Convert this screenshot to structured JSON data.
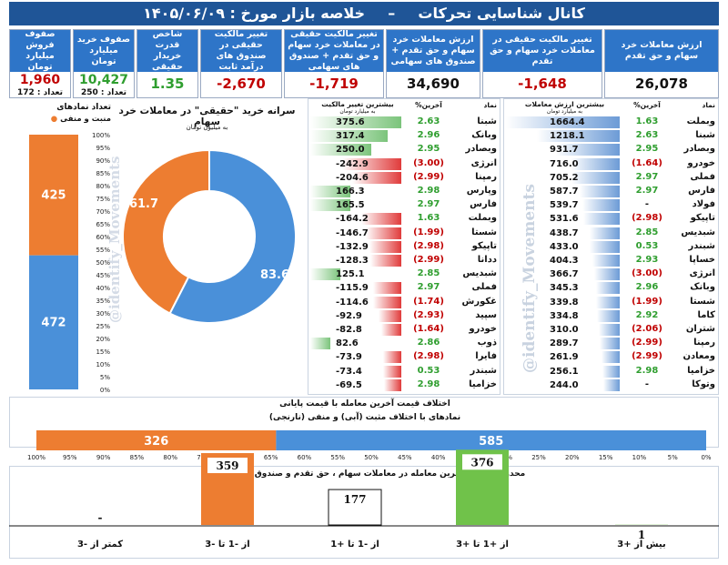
{
  "header": {
    "channel": "کانال شناسایی تحرکات",
    "dash": "–",
    "title": "خلاصه بازار مورخ : ۱۴۰۵/۰۶/۰۹"
  },
  "cards": [
    {
      "label": "صفوف فروش میلیارد تومان",
      "value": "1,960",
      "count": "تعداد : 172",
      "color": "#c00000"
    },
    {
      "label": "صفوف خرید میلیارد تومان",
      "value": "10,427",
      "count": "تعداد : 250",
      "color": "#2f9e2f"
    },
    {
      "label": "شاخص قدرت خریدار حقیقی",
      "value": "1.35",
      "count": "",
      "color": "#2f9e2f"
    },
    {
      "label": "تغییر مالکیت حقیقی در صندوق های درآمد ثابت",
      "value": "-2,670",
      "count": "",
      "color": "#c00000"
    },
    {
      "label": "تغییر مالکیت حقیقی در معاملات خرد سهام و حق تقدم + صندوق های سهامی",
      "value": "-1,719",
      "count": "",
      "color": "#c00000"
    },
    {
      "label": "ارزش معاملات خرد سهام و حق تقدم + صندوق های سهامی",
      "value": "34,690",
      "count": "",
      "color": "#111111"
    },
    {
      "label": "تغییر مالکیت حقیقی در معاملات خرد سهام و حق تقدم",
      "value": "-1,648",
      "count": "",
      "color": "#c00000"
    },
    {
      "label": "ارزش معاملات خرد سهام و حق تقدم",
      "value": "26,078",
      "count": "",
      "color": "#111111"
    }
  ],
  "stack_panel": {
    "title": "تعداد نمادهای",
    "legend": "منبت و منفی",
    "positive_label": "472",
    "negative_label": "425",
    "positive": 472,
    "negative": 425,
    "positive_color": "#4a90d9",
    "negative_color": "#ed7d31",
    "ticks": [
      "100%",
      "95%",
      "90%",
      "85%",
      "80%",
      "75%",
      "70%",
      "65%",
      "60%",
      "55%",
      "50%",
      "45%",
      "40%",
      "35%",
      "30%",
      "25%",
      "20%",
      "15%",
      "10%",
      "5%",
      "0%"
    ]
  },
  "donut": {
    "title": "سرانه خرید \"حقیقی\" در معاملات خرد سهام",
    "subtitle": "به میلیون تومان",
    "buy_label": "83.6",
    "sell_label": "61.7",
    "buy": 83.6,
    "sell": 61.7,
    "buy_color": "#4a90d9",
    "sell_color": "#ed7d31"
  },
  "watermark": "@identify_Movements",
  "owner_table": {
    "header_main": "بیشترین تغییر مالکیت",
    "header_sub": "به میلیارد تومان",
    "col_pct": "%آخرین",
    "col_sym": "نماد",
    "rows": [
      {
        "sym": "شبنا",
        "pct": "2.63",
        "val": 375.6,
        "val_label": "375.6"
      },
      {
        "sym": "وبانک",
        "pct": "2.96",
        "val": 317.4,
        "val_label": "317.4"
      },
      {
        "sym": "وبصادر",
        "pct": "2.95",
        "val": 250.0,
        "val_label": "250.0"
      },
      {
        "sym": "انرژی",
        "pct": "(3.00)",
        "val": -242.9,
        "val_label": "-242.9"
      },
      {
        "sym": "رمپنا",
        "pct": "(2.99)",
        "val": -204.6,
        "val_label": "-204.6"
      },
      {
        "sym": "وپارس",
        "pct": "2.98",
        "val": 166.3,
        "val_label": "166.3"
      },
      {
        "sym": "فارس",
        "pct": "2.97",
        "val": 165.5,
        "val_label": "165.5"
      },
      {
        "sym": "وبملت",
        "pct": "1.63",
        "val": -164.2,
        "val_label": "-164.2"
      },
      {
        "sym": "شستا",
        "pct": "(1.99)",
        "val": -146.7,
        "val_label": "-146.7"
      },
      {
        "sym": "تاپیکو",
        "pct": "(2.98)",
        "val": -132.9,
        "val_label": "-132.9"
      },
      {
        "sym": "ددانا",
        "pct": "(2.99)",
        "val": -128.3,
        "val_label": "-128.3"
      },
      {
        "sym": "شبدیس",
        "pct": "2.85",
        "val": 125.1,
        "val_label": "125.1"
      },
      {
        "sym": "فملی",
        "pct": "2.97",
        "val": -115.9,
        "val_label": "-115.9"
      },
      {
        "sym": "غکورش",
        "pct": "(1.74)",
        "val": -114.6,
        "val_label": "-114.6"
      },
      {
        "sym": "سپید",
        "pct": "(2.93)",
        "val": -92.9,
        "val_label": "-92.9"
      },
      {
        "sym": "خودرو",
        "pct": "(1.64)",
        "val": -82.8,
        "val_label": "-82.8"
      },
      {
        "sym": "ذوب",
        "pct": "2.86",
        "val": 82.6,
        "val_label": "82.6"
      },
      {
        "sym": "فایرا",
        "pct": "(2.98)",
        "val": -73.9,
        "val_label": "-73.9"
      },
      {
        "sym": "شبندر",
        "pct": "0.53",
        "val": -73.4,
        "val_label": "-73.4"
      },
      {
        "sym": "خزامیا",
        "pct": "2.98",
        "val": -69.5,
        "val_label": "-69.5"
      }
    ]
  },
  "value_table": {
    "header_main": "بیشترین ارزش معاملات",
    "header_sub": "به میلیارد تومان",
    "col_pct": "%آخرین",
    "col_sym": "نماد",
    "rows": [
      {
        "sym": "وبملت",
        "pct": "1.63",
        "val": 1664.4,
        "val_label": "1664.4"
      },
      {
        "sym": "شبنا",
        "pct": "2.63",
        "val": 1218.1,
        "val_label": "1218.1"
      },
      {
        "sym": "وبصادر",
        "pct": "2.95",
        "val": 931.7,
        "val_label": "931.7"
      },
      {
        "sym": "خودرو",
        "pct": "(1.64)",
        "val": 716.0,
        "val_label": "716.0"
      },
      {
        "sym": "فملی",
        "pct": "2.97",
        "val": 705.2,
        "val_label": "705.2"
      },
      {
        "sym": "فارس",
        "pct": "2.97",
        "val": 587.7,
        "val_label": "587.7"
      },
      {
        "sym": "فولاد",
        "pct": "-",
        "val": 539.7,
        "val_label": "539.7"
      },
      {
        "sym": "تاپیکو",
        "pct": "(2.98)",
        "val": 531.6,
        "val_label": "531.6"
      },
      {
        "sym": "شبدیس",
        "pct": "2.85",
        "val": 438.7,
        "val_label": "438.7"
      },
      {
        "sym": "شبندر",
        "pct": "0.53",
        "val": 433.0,
        "val_label": "433.0"
      },
      {
        "sym": "خساپا",
        "pct": "2.93",
        "val": 404.3,
        "val_label": "404.3"
      },
      {
        "sym": "انرژی",
        "pct": "(3.00)",
        "val": 366.7,
        "val_label": "366.7"
      },
      {
        "sym": "وبانک",
        "pct": "2.96",
        "val": 345.3,
        "val_label": "345.3"
      },
      {
        "sym": "شستا",
        "pct": "(1.99)",
        "val": 339.8,
        "val_label": "339.8"
      },
      {
        "sym": "کاما",
        "pct": "2.92",
        "val": 334.8,
        "val_label": "334.8"
      },
      {
        "sym": "شتران",
        "pct": "(2.06)",
        "val": 310.0,
        "val_label": "310.0"
      },
      {
        "sym": "رمپنا",
        "pct": "(2.99)",
        "val": 289.7,
        "val_label": "289.7"
      },
      {
        "sym": "ومعادن",
        "pct": "(2.99)",
        "val": 261.9,
        "val_label": "261.9"
      },
      {
        "sym": "خزامیا",
        "pct": "2.98",
        "val": 256.1,
        "val_label": "256.1"
      },
      {
        "sym": "وتوکا",
        "pct": "-",
        "val": 244.0,
        "val_label": "244.0"
      }
    ]
  },
  "hbar": {
    "title": "اختلاف قیمت آخرین معامله با قیمت پایانی",
    "subtitle": "نمادهای با اختلاف مثبت (آبی) و منفی (نارنجی)",
    "negative": 326,
    "positive": 585,
    "negative_label": "326",
    "positive_label": "585",
    "ticks": [
      "100%",
      "95%",
      "90%",
      "85%",
      "80%",
      "75%",
      "70%",
      "65%",
      "60%",
      "55%",
      "50%",
      "45%",
      "40%",
      "35%",
      "30%",
      "25%",
      "20%",
      "15%",
      "10%",
      "5%",
      "0%"
    ]
  },
  "chart_data": {
    "type": "bar",
    "title": "محدوده قیمتی آخرین معامله در  معاملات سهام ، حق تقدم و صندوق های سهامی",
    "categories": [
      "کمتر از -3",
      "از -1 تا -3",
      "از -1 تا +1",
      "از +1 تا +3",
      "بیش از +3"
    ],
    "values": [
      0,
      359,
      177,
      376,
      1
    ],
    "value_labels": [
      "-",
      "359",
      "177",
      "376",
      "1"
    ],
    "colors": [
      "#ed7d31",
      "#ed7d31",
      "#ffffff",
      "#70c24a",
      "#70c24a"
    ]
  }
}
